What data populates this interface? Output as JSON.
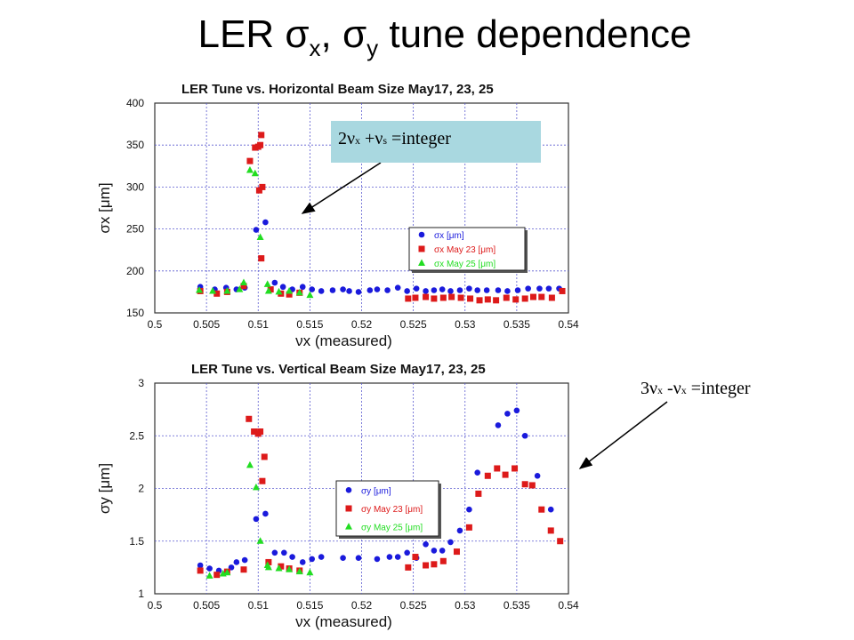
{
  "slide": {
    "title_prefix": "LER ",
    "title_sigma_x": "σ",
    "title_sub_x": "x",
    "title_comma": ", ",
    "title_sigma_y": "σ",
    "title_sub_y": "y",
    "title_suffix": " tune dependence"
  },
  "callouts": {
    "top": {
      "a": "2ν",
      "a_sub": "x",
      "b": " +ν",
      "b_sub": "s",
      "c": " =integer",
      "bg": "#a9d8e0"
    },
    "bottom": {
      "a": "3ν",
      "a_sub": "x",
      "b": " -ν",
      "b_sub": "x",
      "c": " =integer"
    }
  },
  "colors": {
    "series1": "#1a1adc",
    "series2": "#dd1a1a",
    "series3": "#22dd22",
    "grid": "#5a5ad0"
  },
  "chart_data": [
    {
      "type": "scatter",
      "title": "LER Tune vs. Horizontal Beam Size May17, 23, 25",
      "xlabel": "νx (measured)",
      "ylabel": "σx [μm]",
      "xlim": [
        0.5,
        0.54
      ],
      "ylim": [
        150,
        400
      ],
      "xticks": [
        "0.5",
        "0.505",
        "0.51",
        "0.515",
        "0.52",
        "0.525",
        "0.53",
        "0.535",
        "0.54"
      ],
      "yticks": [
        "150",
        "200",
        "250",
        "300",
        "350",
        "400"
      ],
      "grid": true,
      "legend": {
        "position": "center-right",
        "entries": [
          "σx [μm]",
          "σx May 23 [μm]",
          "σx May 25 [μm]"
        ]
      },
      "series": [
        {
          "name": "σx [μm]",
          "marker": "circle",
          "color": "#1a1adc",
          "points": [
            [
              0.5044,
              181
            ],
            [
              0.5058,
              178
            ],
            [
              0.5069,
              180
            ],
            [
              0.5079,
              178
            ],
            [
              0.5087,
              180
            ],
            [
              0.5098,
              249
            ],
            [
              0.5107,
              258
            ],
            [
              0.5116,
              186
            ],
            [
              0.5124,
              181
            ],
            [
              0.5133,
              178
            ],
            [
              0.5143,
              181
            ],
            [
              0.5152,
              178
            ],
            [
              0.5161,
              176
            ],
            [
              0.5172,
              177
            ],
            [
              0.5182,
              178
            ],
            [
              0.5188,
              176
            ],
            [
              0.5197,
              175
            ],
            [
              0.5208,
              177
            ],
            [
              0.5215,
              178
            ],
            [
              0.5225,
              177
            ],
            [
              0.5235,
              180
            ],
            [
              0.5244,
              176
            ],
            [
              0.5253,
              179
            ],
            [
              0.5262,
              176
            ],
            [
              0.527,
              177
            ],
            [
              0.5278,
              178
            ],
            [
              0.5286,
              176
            ],
            [
              0.5295,
              177
            ],
            [
              0.5304,
              179
            ],
            [
              0.5312,
              177
            ],
            [
              0.5321,
              177
            ],
            [
              0.5332,
              177
            ],
            [
              0.5341,
              176
            ],
            [
              0.5351,
              177
            ],
            [
              0.5361,
              179
            ],
            [
              0.5372,
              179
            ],
            [
              0.5381,
              179
            ],
            [
              0.5391,
              179
            ]
          ]
        },
        {
          "name": "σx May 23 [μm]",
          "marker": "square",
          "color": "#dd1a1a",
          "points": [
            [
              0.5044,
              176
            ],
            [
              0.506,
              173
            ],
            [
              0.507,
              175
            ],
            [
              0.5086,
              182
            ],
            [
              0.5092,
              331
            ],
            [
              0.5097,
              347
            ],
            [
              0.51,
              348
            ],
            [
              0.5102,
              350
            ],
            [
              0.5103,
              362
            ],
            [
              0.5104,
              300
            ],
            [
              0.5101,
              296
            ],
            [
              0.5103,
              215
            ],
            [
              0.5112,
              178
            ],
            [
              0.5122,
              173
            ],
            [
              0.513,
              172
            ],
            [
              0.514,
              174
            ],
            [
              0.5245,
              167
            ],
            [
              0.5252,
              168
            ],
            [
              0.5262,
              169
            ],
            [
              0.527,
              167
            ],
            [
              0.5279,
              168
            ],
            [
              0.5287,
              169
            ],
            [
              0.5296,
              168
            ],
            [
              0.5305,
              167
            ],
            [
              0.5314,
              165
            ],
            [
              0.5322,
              166
            ],
            [
              0.533,
              165
            ],
            [
              0.534,
              168
            ],
            [
              0.5349,
              166
            ],
            [
              0.5358,
              167
            ],
            [
              0.5366,
              169
            ],
            [
              0.5374,
              169
            ],
            [
              0.5384,
              168
            ],
            [
              0.5394,
              176
            ]
          ]
        },
        {
          "name": "σx May 25 [μm]",
          "marker": "triangle",
          "color": "#22dd22",
          "points": [
            [
              0.5043,
              177
            ],
            [
              0.5056,
              176
            ],
            [
              0.507,
              176
            ],
            [
              0.5082,
              178
            ],
            [
              0.5086,
              186
            ],
            [
              0.5092,
              320
            ],
            [
              0.5097,
              316
            ],
            [
              0.5102,
              240
            ],
            [
              0.5109,
              184
            ],
            [
              0.511,
              176
            ],
            [
              0.512,
              175
            ],
            [
              0.513,
              176
            ],
            [
              0.514,
              174
            ],
            [
              0.515,
              171
            ]
          ]
        }
      ]
    },
    {
      "type": "scatter",
      "title": "LER Tune vs. Vertical Beam Size May17, 23, 25",
      "xlabel": "νx (measured)",
      "ylabel": "σy [μm]",
      "xlim": [
        0.5,
        0.54
      ],
      "ylim": [
        1,
        3
      ],
      "xticks": [
        "0.5",
        "0.505",
        "0.51",
        "0.515",
        "0.52",
        "0.525",
        "0.53",
        "0.535",
        "0.54"
      ],
      "yticks": [
        "1",
        "1.5",
        "2",
        "2.5",
        "3"
      ],
      "grid": true,
      "legend": {
        "position": "center",
        "entries": [
          "σy [μm]",
          "σy May 23 [μm]",
          "σy May 25 [μm]"
        ]
      },
      "series": [
        {
          "name": "σy [μm]",
          "marker": "circle",
          "color": "#1a1adc",
          "points": [
            [
              0.5044,
              1.27
            ],
            [
              0.5053,
              1.24
            ],
            [
              0.5062,
              1.22
            ],
            [
              0.5074,
              1.25
            ],
            [
              0.5079,
              1.3
            ],
            [
              0.5087,
              1.32
            ],
            [
              0.5098,
              1.71
            ],
            [
              0.5107,
              1.76
            ],
            [
              0.5116,
              1.39
            ],
            [
              0.5125,
              1.39
            ],
            [
              0.5133,
              1.35
            ],
            [
              0.5143,
              1.3
            ],
            [
              0.5152,
              1.33
            ],
            [
              0.5161,
              1.35
            ],
            [
              0.5182,
              1.34
            ],
            [
              0.5197,
              1.34
            ],
            [
              0.5215,
              1.33
            ],
            [
              0.5227,
              1.35
            ],
            [
              0.5235,
              1.35
            ],
            [
              0.5244,
              1.39
            ],
            [
              0.5253,
              1.34
            ],
            [
              0.5262,
              1.47
            ],
            [
              0.527,
              1.41
            ],
            [
              0.5278,
              1.41
            ],
            [
              0.5286,
              1.49
            ],
            [
              0.5295,
              1.6
            ],
            [
              0.5304,
              1.8
            ],
            [
              0.5312,
              2.15
            ],
            [
              0.5332,
              2.6
            ],
            [
              0.5341,
              2.71
            ],
            [
              0.535,
              2.74
            ],
            [
              0.5358,
              2.5
            ],
            [
              0.537,
              2.12
            ],
            [
              0.5383,
              1.8
            ]
          ]
        },
        {
          "name": "σy May 23 [μm]",
          "marker": "square",
          "color": "#dd1a1a",
          "points": [
            [
              0.5044,
              1.22
            ],
            [
              0.506,
              1.18
            ],
            [
              0.507,
              1.21
            ],
            [
              0.5086,
              1.23
            ],
            [
              0.5091,
              2.66
            ],
            [
              0.5096,
              2.54
            ],
            [
              0.51,
              2.52
            ],
            [
              0.5102,
              2.54
            ],
            [
              0.5104,
              2.07
            ],
            [
              0.5106,
              2.3
            ],
            [
              0.511,
              1.3
            ],
            [
              0.5122,
              1.26
            ],
            [
              0.513,
              1.24
            ],
            [
              0.514,
              1.22
            ],
            [
              0.5245,
              1.25
            ],
            [
              0.5252,
              1.35
            ],
            [
              0.5262,
              1.27
            ],
            [
              0.527,
              1.28
            ],
            [
              0.5279,
              1.31
            ],
            [
              0.5292,
              1.4
            ],
            [
              0.5304,
              1.63
            ],
            [
              0.5313,
              1.95
            ],
            [
              0.5322,
              2.12
            ],
            [
              0.5331,
              2.19
            ],
            [
              0.5339,
              2.13
            ],
            [
              0.5348,
              2.19
            ],
            [
              0.5358,
              2.04
            ],
            [
              0.5365,
              2.03
            ],
            [
              0.5374,
              1.8
            ],
            [
              0.5383,
              1.6
            ],
            [
              0.5392,
              1.5
            ]
          ]
        },
        {
          "name": "σy May 25 [μm]",
          "marker": "triangle",
          "color": "#22dd22",
          "points": [
            [
              0.5053,
              1.17
            ],
            [
              0.5066,
              1.19
            ],
            [
              0.507,
              1.2
            ],
            [
              0.5092,
              2.22
            ],
            [
              0.5098,
              2.01
            ],
            [
              0.5102,
              1.5
            ],
            [
              0.5109,
              1.27
            ],
            [
              0.511,
              1.25
            ],
            [
              0.512,
              1.24
            ],
            [
              0.513,
              1.23
            ],
            [
              0.514,
              1.21
            ],
            [
              0.515,
              1.2
            ]
          ]
        }
      ]
    }
  ]
}
